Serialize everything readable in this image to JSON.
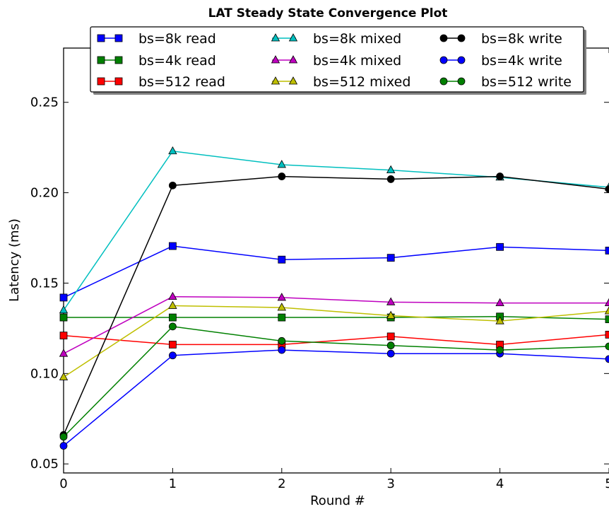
{
  "chart_data": {
    "type": "line",
    "title": "LAT Steady State Convergence Plot",
    "xlabel": "Round #",
    "ylabel": "Latency (ms)",
    "xlim": [
      0,
      5
    ],
    "ylim": [
      0.045,
      0.28
    ],
    "xticks": [
      {
        "value": 0,
        "label": "0"
      },
      {
        "value": 1,
        "label": "1"
      },
      {
        "value": 2,
        "label": "2"
      },
      {
        "value": 3,
        "label": "3"
      },
      {
        "value": 4,
        "label": "4"
      },
      {
        "value": 5,
        "label": "5"
      }
    ],
    "yticks": [
      {
        "value": 0.05,
        "label": "0.05"
      },
      {
        "value": 0.1,
        "label": "0.10"
      },
      {
        "value": 0.15,
        "label": "0.15"
      },
      {
        "value": 0.2,
        "label": "0.20"
      },
      {
        "value": 0.25,
        "label": "0.25"
      }
    ],
    "grid": false,
    "legend_position": "top",
    "x": [
      0,
      1,
      2,
      3,
      4,
      5
    ],
    "series": [
      {
        "name": "bs=8k read",
        "color": "#0000ff",
        "marker": "square",
        "values": [
          0.142,
          0.1705,
          0.163,
          0.164,
          0.17,
          0.168
        ]
      },
      {
        "name": "bs=4k read",
        "color": "#008000",
        "marker": "square",
        "values": [
          0.131,
          0.131,
          0.131,
          0.131,
          0.1315,
          0.13
        ]
      },
      {
        "name": "bs=512 read",
        "color": "#ff0000",
        "marker": "square",
        "values": [
          0.121,
          0.116,
          0.116,
          0.1205,
          0.116,
          0.1215
        ]
      },
      {
        "name": "bs=8k mixed",
        "color": "#00bfbf",
        "marker": "triangle",
        "values": [
          0.135,
          0.223,
          0.2155,
          0.2125,
          0.2085,
          0.203
        ]
      },
      {
        "name": "bs=4k mixed",
        "color": "#bf00bf",
        "marker": "triangle",
        "values": [
          0.111,
          0.1425,
          0.142,
          0.1395,
          0.139,
          0.139
        ]
      },
      {
        "name": "bs=512 mixed",
        "color": "#bfbf00",
        "marker": "triangle",
        "values": [
          0.098,
          0.1375,
          0.1365,
          0.132,
          0.129,
          0.1345
        ]
      },
      {
        "name": "bs=8k write",
        "color": "#000000",
        "marker": "circle",
        "values": [
          0.066,
          0.204,
          0.209,
          0.2075,
          0.209,
          0.202
        ]
      },
      {
        "name": "bs=4k write",
        "color": "#0000ff",
        "marker": "circle",
        "values": [
          0.06,
          0.11,
          0.113,
          0.111,
          0.111,
          0.108
        ]
      },
      {
        "name": "bs=512 write",
        "color": "#008000",
        "marker": "circle",
        "values": [
          0.065,
          0.126,
          0.118,
          0.1155,
          0.113,
          0.115
        ]
      }
    ]
  }
}
